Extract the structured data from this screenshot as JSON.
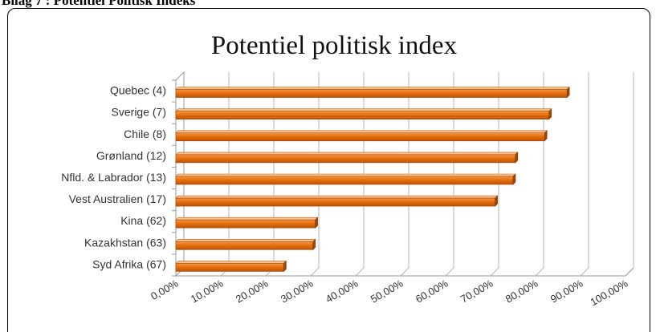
{
  "caption": "Bilag 7 : Potentiel Politisk Indeks",
  "chart_data": {
    "type": "bar",
    "orientation": "horizontal",
    "title": "Potentiel politisk index",
    "xlabel": "",
    "ylabel": "",
    "categories": [
      "Quebec (4)",
      "Sverige (7)",
      "Chile (8)",
      "Grønland (12)",
      "Nfld. & Labrador (13)",
      "Vest Australien (17)",
      "Kina (62)",
      "Kazakhstan (63)",
      "Syd Afrika (67)"
    ],
    "values": [
      0.87,
      0.83,
      0.82,
      0.755,
      0.75,
      0.71,
      0.31,
      0.305,
      0.24
    ],
    "xlim": [
      0,
      1
    ],
    "x_ticks": [
      "0,00%",
      "10,00%",
      "20,00%",
      "30,00%",
      "40,00%",
      "50,00%",
      "60,00%",
      "70,00%",
      "80,00%",
      "90,00%",
      "100,00%"
    ],
    "grid": "vertical",
    "bar_color": "#E36C0A",
    "legend": "none"
  }
}
